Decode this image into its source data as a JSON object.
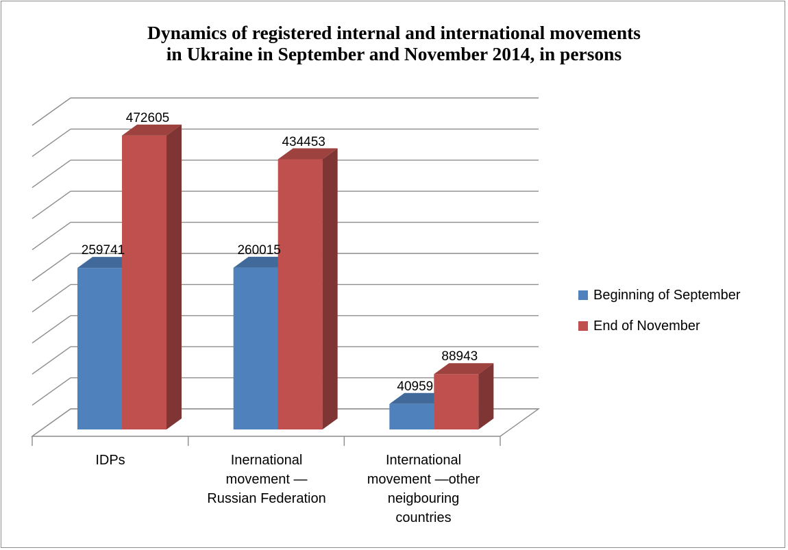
{
  "chart_data": {
    "type": "bar",
    "title_lines": [
      "Dynamics of registered internal and international movements",
      "in Ukraine in September and November 2014, in persons"
    ],
    "categories": [
      [
        "IDPs"
      ],
      [
        "Inernational",
        "movement —",
        "Russian Federation"
      ],
      [
        "International",
        "movement —other",
        "neigbouring",
        "countries"
      ]
    ],
    "series": [
      {
        "name": "Beginning of September",
        "values": [
          259741,
          260015,
          40959
        ],
        "labels": [
          "259741",
          "260015",
          "40959"
        ],
        "color": "#4f81bd"
      },
      {
        "name": "End of November",
        "values": [
          472605,
          434453,
          88943
        ],
        "labels": [
          "472605",
          "434453",
          "88943"
        ],
        "color": "#c0504d"
      }
    ],
    "ylim": [
      0,
      500000
    ],
    "grid": true,
    "legend_position": "right",
    "three_d": true
  }
}
